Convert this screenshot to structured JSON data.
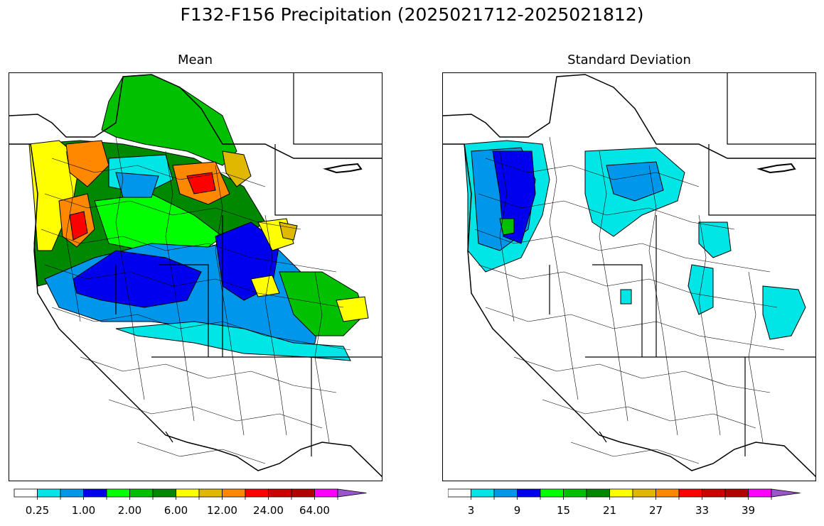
{
  "figure": {
    "title": "F132-F156 Precipitation (2025021712-2025021812)"
  },
  "panels": [
    {
      "title": "Mean",
      "colorbar": {
        "colors": [
          "#ffffff",
          "#00e5e5",
          "#0096ea",
          "#0000ee",
          "#00ff00",
          "#00c000",
          "#008800",
          "#ffff00",
          "#e0b800",
          "#ff8800",
          "#ff0000",
          "#cc0000",
          "#b30000",
          "#ff00ff",
          "#9955cc"
        ],
        "tick_labels": [
          "0.25",
          "1.00",
          "2.00",
          "6.00",
          "12.00",
          "24.00",
          "64.00"
        ]
      }
    },
    {
      "title": "Standard Deviation",
      "colorbar": {
        "colors": [
          "#ffffff",
          "#00e5e5",
          "#0096ea",
          "#0000ee",
          "#00ff00",
          "#00c000",
          "#008800",
          "#ffff00",
          "#e0b800",
          "#ff8800",
          "#ff0000",
          "#cc0000",
          "#b30000",
          "#ff00ff",
          "#9955cc"
        ],
        "tick_labels": [
          "3",
          "9",
          "15",
          "21",
          "27",
          "33",
          "39"
        ]
      }
    }
  ]
}
